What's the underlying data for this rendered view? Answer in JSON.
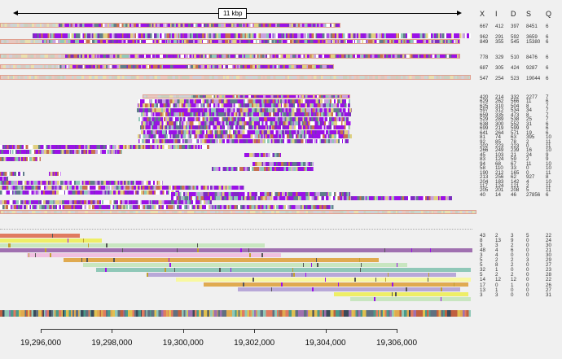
{
  "scale_bar": {
    "label": "11 kbp"
  },
  "axis": {
    "ticks": [
      "19,296,000",
      "19,298,000",
      "19,300,000",
      "19,302,000",
      "19,304,000",
      "19,306,000"
    ]
  },
  "table": {
    "headers": [
      "X",
      "I",
      "D",
      "S",
      "Q"
    ],
    "groups": [
      [
        [
          "667",
          "412",
          "397",
          "8451",
          "6"
        ],
        [
          "962",
          "291",
          "592",
          "3659",
          "6"
        ],
        [
          "849",
          "355",
          "545",
          "15380",
          "6"
        ],
        [
          "778",
          "329",
          "510",
          "8476",
          "6"
        ],
        [
          "687",
          "305",
          "424",
          "9287",
          "6"
        ],
        [
          "547",
          "254",
          "523",
          "19044",
          "6"
        ]
      ],
      [
        [
          "420",
          "214",
          "332",
          "2277",
          "7"
        ],
        [
          "629",
          "262",
          "566",
          "11",
          "6"
        ],
        [
          "625",
          "310",
          "504",
          "8",
          "7"
        ],
        [
          "597",
          "312",
          "534",
          "34",
          "7"
        ],
        [
          "659",
          "335",
          "473",
          "8",
          "7"
        ],
        [
          "529",
          "289",
          "538",
          "25",
          "7"
        ],
        [
          "638",
          "300",
          "552",
          "31",
          "6"
        ],
        [
          "699",
          "219",
          "599",
          "9",
          "6"
        ],
        [
          "641",
          "264",
          "571",
          "19",
          "6"
        ],
        [
          "81",
          "74",
          "63",
          "395",
          "10"
        ],
        [
          "92",
          "85",
          "78",
          "2",
          "11"
        ],
        [
          "202",
          "223",
          "223",
          "0",
          "11"
        ],
        [
          "266",
          "249",
          "239",
          "16",
          "10"
        ],
        [
          "45",
          "103",
          "21",
          "24",
          "9"
        ],
        [
          "83",
          "124",
          "59",
          "2",
          "9"
        ],
        [
          "94",
          "68",
          "67",
          "11",
          "10"
        ],
        [
          "58",
          "110",
          "33",
          "0",
          "10"
        ],
        [
          "190",
          "212",
          "165",
          "0",
          "11"
        ],
        [
          "213",
          "256",
          "62",
          "927",
          "8"
        ],
        [
          "204",
          "183",
          "142",
          "4",
          "10"
        ],
        [
          "117",
          "124",
          "121",
          "2",
          "11"
        ],
        [
          "205",
          "201",
          "208",
          "5",
          "11"
        ],
        [
          "40",
          "14",
          "46",
          "27856",
          "6"
        ]
      ],
      [
        [
          "43",
          "2",
          "3",
          "5",
          "22"
        ],
        [
          "8",
          "13",
          "9",
          "0",
          "24"
        ],
        [
          "3",
          "3",
          "2",
          "0",
          "30"
        ],
        [
          "48",
          "4",
          "6",
          "0",
          "21"
        ],
        [
          "3",
          "4",
          "0",
          "0",
          "30"
        ],
        [
          "5",
          "2",
          "2",
          "3",
          "29"
        ],
        [
          "5",
          "8",
          "2",
          "0",
          "27"
        ],
        [
          "32",
          "1",
          "0",
          "0",
          "23"
        ],
        [
          "5",
          "2",
          "2",
          "0",
          "28"
        ],
        [
          "14",
          "12",
          "12",
          "0",
          "22"
        ],
        [
          "17",
          "0",
          "1",
          "0",
          "26"
        ],
        [
          "13",
          "1",
          "0",
          "0",
          "27"
        ],
        [
          "3",
          "3",
          "0",
          "0",
          "31"
        ]
      ]
    ]
  },
  "colors": {
    "purple": "#9b10e8",
    "salmon": "#e07a5f",
    "yellow": "#eeee66",
    "green": "#c8e6c0",
    "violet": "#a070b0",
    "pink": "#f0c0e0",
    "orange": "#e0aa50",
    "teal": "#90c8b8",
    "lavender": "#b8a8d8",
    "lightyellow": "#f8f8a0"
  }
}
